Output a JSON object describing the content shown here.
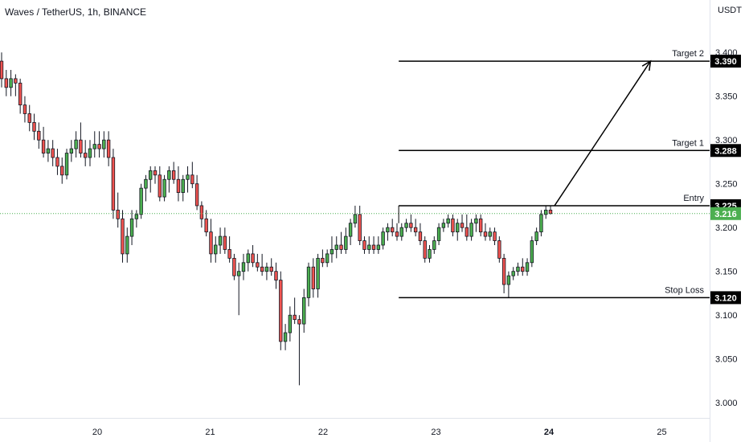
{
  "title": "Waves / TetherUS, 1h, BINANCE",
  "currency": "USDT",
  "colors": {
    "up": "#26a69a",
    "up_fill": "#4caf50",
    "down": "#ef5350",
    "level_line": "#000000",
    "current_price": "#4caf50",
    "grid": "#ffffff"
  },
  "chart_data": {
    "type": "candlestick",
    "title": "Waves / TetherUS, 1h, BINANCE",
    "ylim": [
      2.98,
      3.44
    ],
    "y_ticks": [
      "3.000",
      "3.050",
      "3.100",
      "3.150",
      "3.200",
      "3.250",
      "3.300",
      "3.350",
      "3.400"
    ],
    "y_tick_values": [
      3.0,
      3.05,
      3.1,
      3.15,
      3.2,
      3.25,
      3.3,
      3.35,
      3.4
    ],
    "x_ticks": [
      "20",
      "21",
      "22",
      "23",
      "24",
      "25"
    ],
    "x_tick_days": [
      20,
      21,
      22,
      23,
      24,
      25
    ],
    "x_start_day": 19.15,
    "x_end_day": 25.52,
    "current_price": 3.216,
    "current_price_label": "3.216",
    "levels": [
      {
        "name": "Target 2",
        "price": 3.39,
        "tag": "3.390"
      },
      {
        "name": "Target 1",
        "price": 3.288,
        "tag": "3.288"
      },
      {
        "name": "Entry",
        "price": 3.225,
        "tag": "3.225"
      },
      {
        "name": "Stop Loss",
        "price": 3.12,
        "tag": "3.120"
      }
    ],
    "levels_start_day": 22.67,
    "arrow": {
      "from_day": 24.05,
      "from_price": 3.225,
      "to_day": 24.9,
      "to_price": 3.39
    },
    "candles_ohlc": [
      [
        3.39,
        3.4,
        3.36,
        3.37
      ],
      [
        3.37,
        3.38,
        3.35,
        3.36
      ],
      [
        3.36,
        3.38,
        3.35,
        3.37
      ],
      [
        3.37,
        3.375,
        3.35,
        3.365
      ],
      [
        3.365,
        3.37,
        3.33,
        3.34
      ],
      [
        3.34,
        3.35,
        3.32,
        3.33
      ],
      [
        3.33,
        3.34,
        3.31,
        3.32
      ],
      [
        3.32,
        3.33,
        3.3,
        3.31
      ],
      [
        3.31,
        3.32,
        3.29,
        3.3
      ],
      [
        3.3,
        3.315,
        3.28,
        3.285
      ],
      [
        3.285,
        3.3,
        3.275,
        3.29
      ],
      [
        3.29,
        3.3,
        3.27,
        3.28
      ],
      [
        3.28,
        3.29,
        3.26,
        3.27
      ],
      [
        3.27,
        3.28,
        3.25,
        3.26
      ],
      [
        3.26,
        3.29,
        3.255,
        3.285
      ],
      [
        3.285,
        3.3,
        3.275,
        3.29
      ],
      [
        3.29,
        3.31,
        3.28,
        3.3
      ],
      [
        3.3,
        3.32,
        3.28,
        3.285
      ],
      [
        3.285,
        3.3,
        3.27,
        3.28
      ],
      [
        3.28,
        3.3,
        3.27,
        3.29
      ],
      [
        3.29,
        3.31,
        3.28,
        3.295
      ],
      [
        3.295,
        3.31,
        3.28,
        3.29
      ],
      [
        3.29,
        3.31,
        3.28,
        3.3
      ],
      [
        3.3,
        3.31,
        3.27,
        3.28
      ],
      [
        3.28,
        3.29,
        3.21,
        3.22
      ],
      [
        3.22,
        3.24,
        3.2,
        3.21
      ],
      [
        3.21,
        3.22,
        3.16,
        3.17
      ],
      [
        3.17,
        3.2,
        3.16,
        3.19
      ],
      [
        3.19,
        3.22,
        3.18,
        3.21
      ],
      [
        3.21,
        3.22,
        3.2,
        3.215
      ],
      [
        3.215,
        3.25,
        3.21,
        3.245
      ],
      [
        3.245,
        3.26,
        3.23,
        3.255
      ],
      [
        3.255,
        3.27,
        3.24,
        3.265
      ],
      [
        3.265,
        3.27,
        3.25,
        3.26
      ],
      [
        3.26,
        3.27,
        3.23,
        3.235
      ],
      [
        3.235,
        3.26,
        3.23,
        3.255
      ],
      [
        3.255,
        3.27,
        3.24,
        3.265
      ],
      [
        3.265,
        3.275,
        3.25,
        3.255
      ],
      [
        3.255,
        3.27,
        3.23,
        3.24
      ],
      [
        3.24,
        3.26,
        3.23,
        3.255
      ],
      [
        3.255,
        3.27,
        3.24,
        3.26
      ],
      [
        3.26,
        3.275,
        3.245,
        3.25
      ],
      [
        3.25,
        3.26,
        3.22,
        3.225
      ],
      [
        3.225,
        3.23,
        3.2,
        3.21
      ],
      [
        3.21,
        3.22,
        3.19,
        3.195
      ],
      [
        3.195,
        3.21,
        3.16,
        3.17
      ],
      [
        3.17,
        3.19,
        3.16,
        3.18
      ],
      [
        3.18,
        3.2,
        3.17,
        3.19
      ],
      [
        3.19,
        3.2,
        3.17,
        3.175
      ],
      [
        3.175,
        3.19,
        3.16,
        3.165
      ],
      [
        3.165,
        3.17,
        3.14,
        3.145
      ],
      [
        3.145,
        3.16,
        3.1,
        3.15
      ],
      [
        3.15,
        3.17,
        3.14,
        3.16
      ],
      [
        3.16,
        3.175,
        3.15,
        3.17
      ],
      [
        3.17,
        3.18,
        3.155,
        3.16
      ],
      [
        3.16,
        3.17,
        3.15,
        3.155
      ],
      [
        3.155,
        3.17,
        3.145,
        3.15
      ],
      [
        3.15,
        3.16,
        3.14,
        3.155
      ],
      [
        3.155,
        3.165,
        3.145,
        3.15
      ],
      [
        3.15,
        3.16,
        3.13,
        3.14
      ],
      [
        3.14,
        3.15,
        3.06,
        3.07
      ],
      [
        3.07,
        3.09,
        3.06,
        3.08
      ],
      [
        3.08,
        3.11,
        3.07,
        3.1
      ],
      [
        3.1,
        3.12,
        3.09,
        3.095
      ],
      [
        3.095,
        3.1,
        3.02,
        3.09
      ],
      [
        3.09,
        3.13,
        3.08,
        3.12
      ],
      [
        3.12,
        3.16,
        3.11,
        3.155
      ],
      [
        3.155,
        3.165,
        3.12,
        3.13
      ],
      [
        3.13,
        3.17,
        3.12,
        3.165
      ],
      [
        3.165,
        3.175,
        3.155,
        3.16
      ],
      [
        3.16,
        3.175,
        3.155,
        3.17
      ],
      [
        3.17,
        3.19,
        3.16,
        3.175
      ],
      [
        3.175,
        3.19,
        3.165,
        3.18
      ],
      [
        3.18,
        3.195,
        3.17,
        3.175
      ],
      [
        3.175,
        3.2,
        3.17,
        3.19
      ],
      [
        3.19,
        3.21,
        3.18,
        3.205
      ],
      [
        3.205,
        3.225,
        3.2,
        3.215
      ],
      [
        3.215,
        3.225,
        3.18,
        3.185
      ],
      [
        3.185,
        3.19,
        3.17,
        3.175
      ],
      [
        3.175,
        3.19,
        3.17,
        3.18
      ],
      [
        3.18,
        3.19,
        3.17,
        3.175
      ],
      [
        3.175,
        3.19,
        3.17,
        3.18
      ],
      [
        3.18,
        3.2,
        3.175,
        3.195
      ],
      [
        3.195,
        3.205,
        3.185,
        3.2
      ],
      [
        3.2,
        3.21,
        3.19,
        3.195
      ],
      [
        3.195,
        3.205,
        3.185,
        3.19
      ],
      [
        3.19,
        3.205,
        3.185,
        3.2
      ],
      [
        3.2,
        3.21,
        3.195,
        3.205
      ],
      [
        3.205,
        3.215,
        3.195,
        3.2
      ],
      [
        3.2,
        3.21,
        3.19,
        3.195
      ],
      [
        3.195,
        3.205,
        3.18,
        3.185
      ],
      [
        3.185,
        3.19,
        3.16,
        3.165
      ],
      [
        3.165,
        3.18,
        3.16,
        3.175
      ],
      [
        3.175,
        3.19,
        3.17,
        3.185
      ],
      [
        3.185,
        3.205,
        3.18,
        3.2
      ],
      [
        3.2,
        3.21,
        3.195,
        3.205
      ],
      [
        3.205,
        3.215,
        3.2,
        3.21
      ],
      [
        3.21,
        3.215,
        3.19,
        3.195
      ],
      [
        3.195,
        3.21,
        3.185,
        3.205
      ],
      [
        3.205,
        3.215,
        3.195,
        3.2
      ],
      [
        3.2,
        3.215,
        3.185,
        3.19
      ],
      [
        3.19,
        3.21,
        3.185,
        3.205
      ],
      [
        3.205,
        3.215,
        3.195,
        3.21
      ],
      [
        3.21,
        3.215,
        3.19,
        3.195
      ],
      [
        3.195,
        3.205,
        3.185,
        3.19
      ],
      [
        3.19,
        3.2,
        3.185,
        3.195
      ],
      [
        3.195,
        3.2,
        3.18,
        3.185
      ],
      [
        3.185,
        3.19,
        3.16,
        3.165
      ],
      [
        3.165,
        3.17,
        3.125,
        3.135
      ],
      [
        3.135,
        3.15,
        3.12,
        3.145
      ],
      [
        3.145,
        3.155,
        3.14,
        3.15
      ],
      [
        3.15,
        3.16,
        3.145,
        3.155
      ],
      [
        3.155,
        3.165,
        3.145,
        3.15
      ],
      [
        3.15,
        3.165,
        3.145,
        3.16
      ],
      [
        3.16,
        3.19,
        3.155,
        3.185
      ],
      [
        3.185,
        3.2,
        3.18,
        3.195
      ],
      [
        3.195,
        3.22,
        3.19,
        3.215
      ],
      [
        3.215,
        3.225,
        3.21,
        3.22
      ],
      [
        3.22,
        3.225,
        3.215,
        3.216
      ]
    ]
  }
}
